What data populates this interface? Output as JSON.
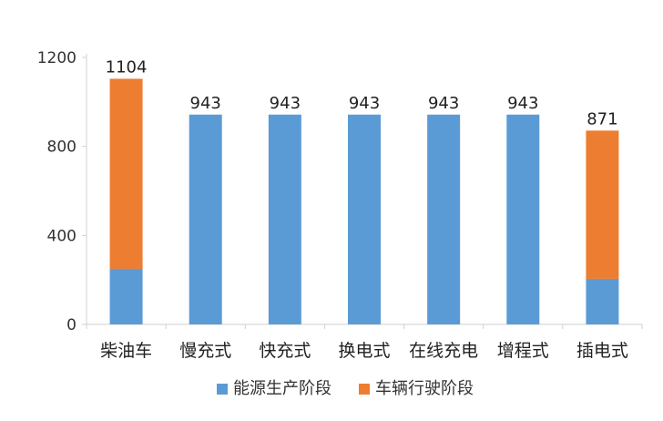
{
  "chart_data": {
    "type": "bar",
    "stacked": true,
    "categories": [
      "柴油车",
      "慢充式",
      "快充式",
      "换电式",
      "在线充电",
      "增程式",
      "插电式"
    ],
    "series": [
      {
        "name": "能源生产阶段",
        "color": "#5B9BD5",
        "values": [
          250,
          943,
          943,
          943,
          943,
          943,
          205
        ]
      },
      {
        "name": "车辆行驶阶段",
        "color": "#ED7D31",
        "values": [
          854,
          0,
          0,
          0,
          0,
          0,
          666
        ]
      }
    ],
    "totals": [
      1104,
      943,
      943,
      943,
      943,
      943,
      871
    ],
    "data_labels": [
      "1104",
      "943",
      "943",
      "943",
      "943",
      "943",
      "871"
    ],
    "yticks": [
      0,
      400,
      800,
      1200
    ],
    "ylim": [
      0,
      1200
    ],
    "title": "",
    "xlabel": "",
    "ylabel": "",
    "grid": false,
    "legend": "bottom"
  }
}
